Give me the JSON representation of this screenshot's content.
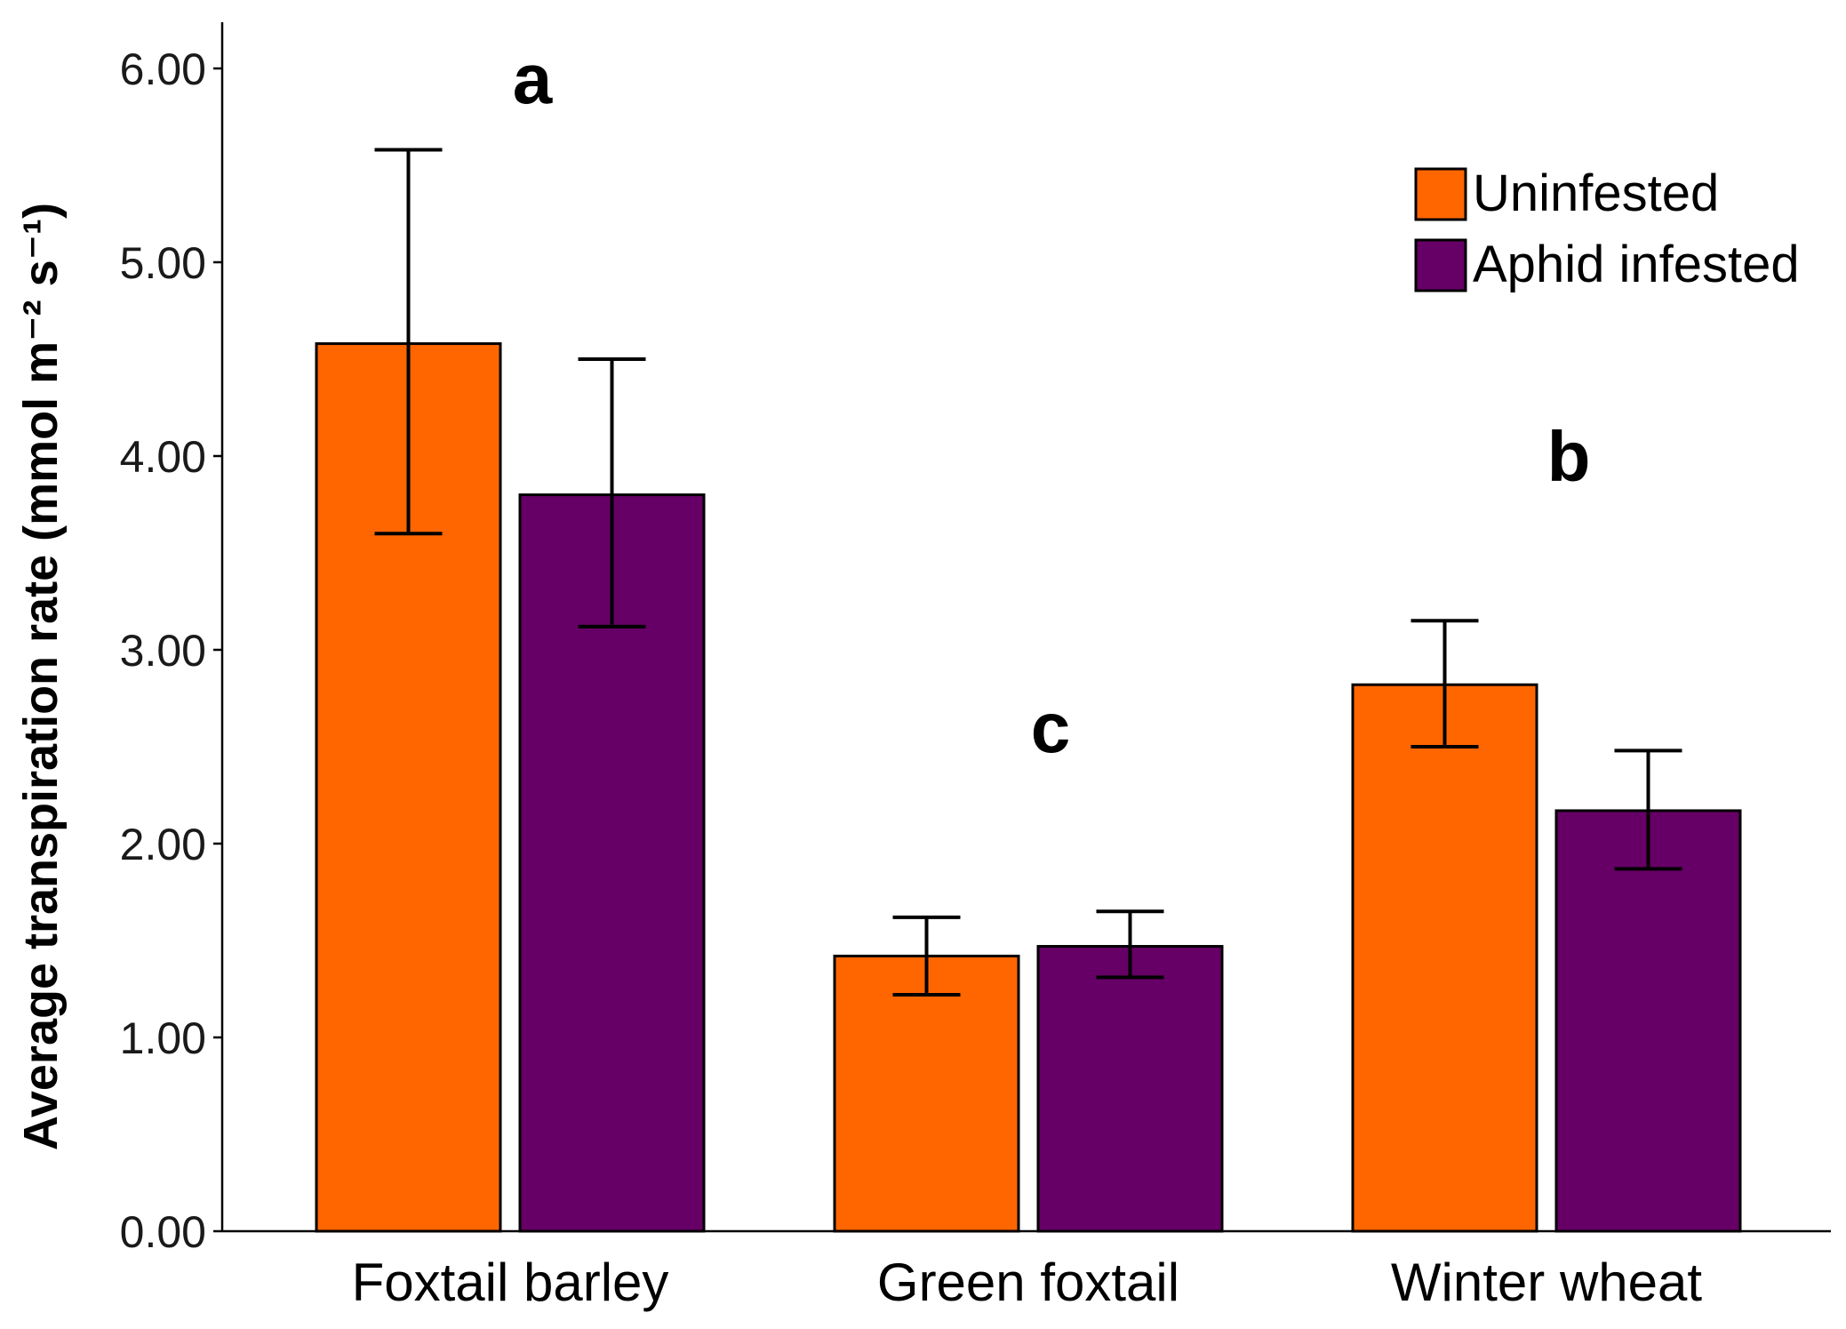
{
  "chart_data": {
    "type": "bar",
    "title": "",
    "xlabel": "",
    "ylabel": "Average transpiration rate (mmol m⁻² s⁻¹)",
    "ylim": [
      0,
      6.25
    ],
    "yticks": [
      0,
      1,
      2,
      3,
      4,
      5,
      6
    ],
    "ytick_labels": [
      "0.00",
      "1.00",
      "2.00",
      "3.00",
      "4.00",
      "5.00",
      "6.00"
    ],
    "categories": [
      "Foxtail barley",
      "Green foxtail",
      "Winter wheat"
    ],
    "series": [
      {
        "name": "Uninfested",
        "color": "#ff6600",
        "values": [
          4.58,
          1.42,
          2.82
        ],
        "err_low": [
          3.6,
          1.22,
          2.5
        ],
        "err_high": [
          5.58,
          1.62,
          3.15
        ]
      },
      {
        "name": "Aphid infested",
        "color": "#660066",
        "values": [
          3.8,
          1.47,
          2.17
        ],
        "err_low": [
          3.12,
          1.31,
          1.87
        ],
        "err_high": [
          4.5,
          1.65,
          2.48
        ]
      }
    ],
    "annotations": [
      {
        "text": "a",
        "category": "Foxtail barley",
        "y": 5.95
      },
      {
        "text": "c",
        "category": "Green foxtail",
        "y": 2.6
      },
      {
        "text": "b",
        "category": "Winter wheat",
        "y": 4.0
      }
    ],
    "legend": {
      "position": "top-right"
    },
    "grid": false
  }
}
